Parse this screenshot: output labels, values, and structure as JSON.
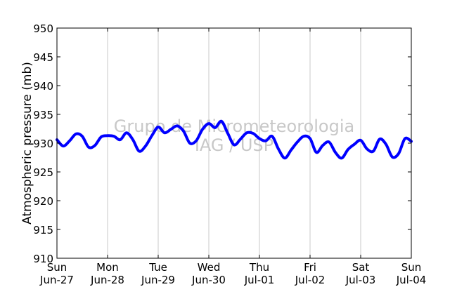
{
  "chart_data": {
    "type": "line",
    "title": "",
    "xlabel": "",
    "ylabel": "Atmospheric pressure (mb)",
    "ylim": [
      910,
      950
    ],
    "yticks": [
      "910",
      "915",
      "920",
      "925",
      "930",
      "935",
      "940",
      "945",
      "950"
    ],
    "xlim": [
      "2010-06-27T00:00",
      "2010-07-04T00:00"
    ],
    "xticks": [
      {
        "day": "Sun",
        "date": "Jun-27"
      },
      {
        "day": "Mon",
        "date": "Jun-28"
      },
      {
        "day": "Tue",
        "date": "Jun-29"
      },
      {
        "day": "Wed",
        "date": "Jun-30"
      },
      {
        "day": "Thu",
        "date": "Jul-01"
      },
      {
        "day": "Fri",
        "date": "Jul-02"
      },
      {
        "day": "Sat",
        "date": "Jul-03"
      },
      {
        "day": "Sun",
        "date": "Jul-04"
      }
    ],
    "grid": {
      "x": true,
      "y": false
    },
    "line_color": "#0000ff",
    "watermark": [
      "Grupo de Micrometeorologia",
      "IAG / USP"
    ],
    "series": [
      {
        "x": [
          "06-27 00:00",
          "06-27 03:00",
          "06-27 06:00",
          "06-27 09:00",
          "06-27 12:00",
          "06-27 15:00",
          "06-27 18:00",
          "06-27 21:00",
          "06-28 00:00",
          "06-28 03:00",
          "06-28 06:00",
          "06-28 09:00",
          "06-28 12:00",
          "06-28 15:00",
          "06-28 18:00",
          "06-28 21:00",
          "06-29 00:00",
          "06-29 03:00",
          "06-29 06:00",
          "06-29 09:00",
          "06-29 12:00",
          "06-29 15:00",
          "06-29 18:00",
          "06-29 21:00",
          "06-30 00:00",
          "06-30 03:00",
          "06-30 06:00",
          "06-30 09:00",
          "06-30 12:00",
          "06-30 15:00",
          "06-30 18:00",
          "06-30 21:00",
          "07-01 00:00",
          "07-01 03:00",
          "07-01 06:00",
          "07-01 09:00",
          "07-01 12:00",
          "07-01 15:00",
          "07-01 18:00",
          "07-01 21:00",
          "07-02 00:00",
          "07-02 03:00",
          "07-02 06:00",
          "07-02 09:00",
          "07-02 12:00",
          "07-02 15:00",
          "07-02 18:00",
          "07-02 21:00",
          "07-03 00:00",
          "07-03 03:00",
          "07-03 06:00",
          "07-03 09:00",
          "07-03 12:00",
          "07-03 15:00",
          "07-03 18:00",
          "07-03 21:00",
          "07-04 00:00"
        ],
        "values": [
          930.6,
          929.5,
          930.4,
          931.6,
          931.2,
          929.3,
          929.6,
          931.1,
          931.3,
          931.2,
          930.6,
          931.8,
          930.6,
          928.6,
          929.5,
          931.3,
          932.8,
          931.8,
          932.4,
          933.0,
          932.1,
          930.0,
          930.4,
          932.4,
          933.4,
          932.7,
          933.8,
          931.7,
          929.7,
          930.7,
          931.8,
          931.7,
          930.8,
          930.4,
          931.2,
          929.0,
          927.4,
          928.8,
          930.2,
          931.2,
          930.8,
          928.4,
          929.6,
          930.2,
          928.4,
          927.4,
          928.9,
          929.8,
          930.5,
          929.0,
          928.6,
          930.7,
          929.8,
          927.6,
          928.2,
          930.8,
          930.3
        ]
      }
    ]
  }
}
